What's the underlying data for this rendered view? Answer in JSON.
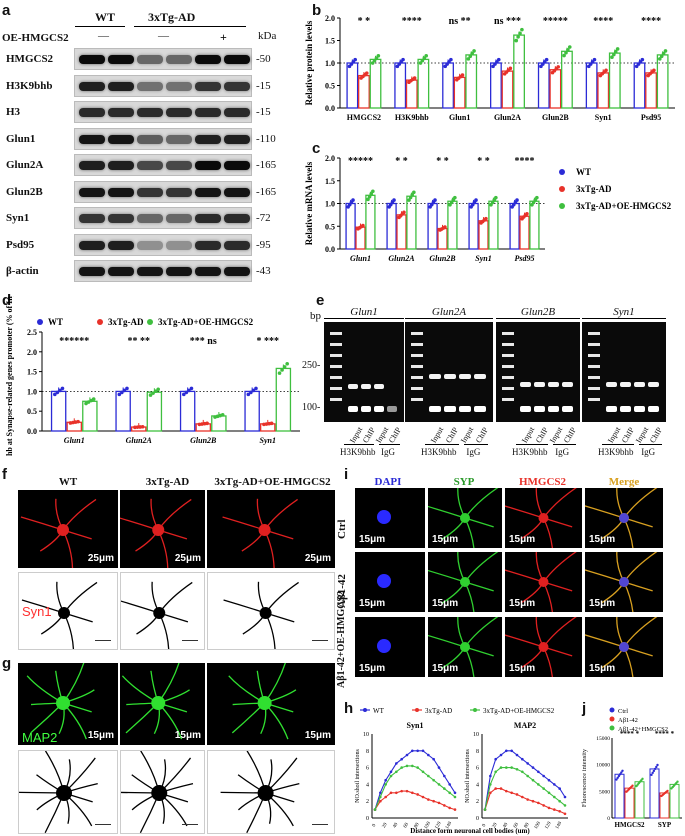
{
  "panels": {
    "a": {
      "letter": "a",
      "groups": [
        "WT",
        "3xTg-AD"
      ],
      "oe_label": "OE-HMGCS2",
      "oe_marks": [
        "—",
        "—",
        "+"
      ],
      "kda_header": "kDa",
      "blots": [
        {
          "name": "HMGCS2",
          "kda": "-50"
        },
        {
          "name": "H3K9bhb",
          "kda": "-15"
        },
        {
          "name": "H3",
          "kda": "-15"
        },
        {
          "name": "Glun1",
          "kda": "-110"
        },
        {
          "name": "Glun2A",
          "kda": "-165"
        },
        {
          "name": "Glun2B",
          "kda": "-165"
        },
        {
          "name": "Syn1",
          "kda": "-72"
        },
        {
          "name": "Psd95",
          "kda": "-95"
        },
        {
          "name": "β-actin",
          "kda": "-43"
        }
      ]
    },
    "b": {
      "letter": "b"
    },
    "c": {
      "letter": "c"
    },
    "d": {
      "letter": "d"
    },
    "e": {
      "letter": "e",
      "bp": "bp",
      "marker_250": "250-",
      "marker_100": "100-",
      "genes": [
        "Glun1",
        "Glun2A",
        "Glun2B",
        "Syn1"
      ],
      "lanes": [
        "Input",
        "ChIP",
        "Input",
        "ChIP"
      ],
      "group_h3": "H3K9bhb",
      "group_igg": "IgG"
    },
    "f": {
      "letter": "f",
      "cols": [
        "WT",
        "3xTg-AD",
        "3xTg-AD+OE-HMGCS2"
      ],
      "stain": "Syn1",
      "scale": "25μm"
    },
    "g": {
      "letter": "g",
      "stain": "MAP2",
      "scale": "15μm"
    },
    "h": {
      "letter": "h",
      "legend": [
        "WT",
        "3xTg-AD",
        "3xTg-AD+OE-HMGCS2"
      ],
      "xlabel": "Distance form neuronal cell bodies (um)",
      "ylabel": "NO.shoil intersections",
      "titles": [
        "Syn1",
        "MAP2"
      ]
    },
    "i": {
      "letter": "i",
      "cols": [
        "DAPI",
        "SYP",
        "HMGCS2",
        "Merge"
      ],
      "rows": [
        "Ctrl",
        "Aβ1-42",
        "Aβ1-42+OE-HMGCS2"
      ],
      "scale": "15μm"
    },
    "j": {
      "letter": "j",
      "legend": [
        "Ctrl",
        "Aβ1-42",
        "Aβ1-42+HMGCS2"
      ],
      "ylabel": "Fluorescence intensity",
      "categories": [
        "HMGCS2",
        "SYP"
      ]
    }
  },
  "colors": {
    "wt": "#2b2bd6",
    "ad": "#e8322a",
    "oe": "#3fbf3f"
  },
  "chart_data": [
    {
      "panel": "b",
      "type": "bar",
      "categories": [
        "HMGCS2",
        "H3K9bhb",
        "Glun1",
        "Glun2A",
        "Glun2B",
        "Syn1",
        "Psd95"
      ],
      "series": [
        {
          "name": "WT",
          "values": [
            1.0,
            1.0,
            1.0,
            1.0,
            1.0,
            1.0,
            1.0
          ]
        },
        {
          "name": "3xTg-AD",
          "values": [
            0.72,
            0.62,
            0.68,
            0.82,
            0.85,
            0.78,
            0.78
          ]
        },
        {
          "name": "3xTg-AD+OE-HMGCS2",
          "values": [
            1.08,
            1.08,
            1.18,
            1.62,
            1.26,
            1.22,
            1.18
          ]
        }
      ],
      "significance": [
        "*  *",
        "****",
        "ns **",
        "ns ***",
        "*****",
        "****",
        "****"
      ],
      "ylabel": "Relative protein levels",
      "yticks": [
        "0.0",
        "0.5",
        "1.0",
        "1.5",
        "2.0"
      ],
      "ylim": [
        0,
        2.0
      ]
    },
    {
      "panel": "c",
      "type": "bar",
      "categories": [
        "Glun1",
        "Glun2A",
        "Glun2B",
        "Syn1",
        "Psd95"
      ],
      "series": [
        {
          "name": "WT",
          "values": [
            1.0,
            1.0,
            1.0,
            1.0,
            1.0
          ]
        },
        {
          "name": "3xTg-AD",
          "values": [
            0.48,
            0.75,
            0.45,
            0.62,
            0.72
          ]
        },
        {
          "name": "3xTg-AD+OE-HMGCS2",
          "values": [
            1.18,
            1.16,
            1.05,
            1.05,
            1.05
          ]
        }
      ],
      "significance": [
        "*****",
        "*  *",
        "*  *",
        "*  *",
        "****"
      ],
      "ylabel": "Relative mRNA levels",
      "yticks": [
        "0.0",
        "0.5",
        "1.0",
        "1.5",
        "2.0"
      ],
      "ylim": [
        0,
        2.0
      ],
      "legend": [
        "WT",
        "3xTg-AD",
        "3xTg-AD+OE-HMGCS2"
      ]
    },
    {
      "panel": "d",
      "type": "bar",
      "categories": [
        "Glun1",
        "Glun2A",
        "Glun2B",
        "Syn1"
      ],
      "series": [
        {
          "name": "WT",
          "values": [
            1.0,
            1.0,
            1.0,
            1.0
          ]
        },
        {
          "name": "3xTg-AD",
          "values": [
            0.22,
            0.1,
            0.18,
            0.18
          ]
        },
        {
          "name": "3xTg-AD+OE-HMGCS2",
          "values": [
            0.75,
            0.98,
            0.38,
            1.58
          ]
        }
      ],
      "significance": [
        "******",
        "** **",
        "*** ns",
        "* ***"
      ],
      "ylabel": "H3K9bhb at Synapse-related genes promoter (% of Input)",
      "yticks": [
        "0.0",
        "0.5",
        "1.0",
        "1.5",
        "2.0",
        "2.5"
      ],
      "ylim": [
        0,
        2.5
      ],
      "legend": [
        "WT",
        "3xTg-AD",
        "3xTg-AD+OE-HMGCS2"
      ]
    },
    {
      "panel": "h",
      "type": "line",
      "x": [
        0,
        10,
        20,
        30,
        40,
        50,
        60,
        70,
        80,
        90,
        100,
        110,
        120,
        130,
        140,
        150
      ],
      "series": [
        {
          "name": "WT",
          "chart": "Syn1",
          "values": [
            1,
            3,
            4.5,
            5.5,
            6.5,
            7,
            7.5,
            8,
            8,
            8,
            7.5,
            7,
            6,
            5,
            4,
            3
          ]
        },
        {
          "name": "3xTg-AD",
          "chart": "Syn1",
          "values": [
            1,
            2,
            2.5,
            3,
            3,
            3.2,
            3.2,
            3,
            2.8,
            2.5,
            2.2,
            2,
            1.8,
            1.5,
            1.2,
            1
          ]
        },
        {
          "name": "3xTg-AD+OE-HMGCS2",
          "chart": "Syn1",
          "values": [
            1,
            2.5,
            4,
            5,
            5.5,
            6,
            6.2,
            6.2,
            6,
            5.5,
            5,
            4.5,
            4,
            3.5,
            3,
            2.5
          ]
        },
        {
          "name": "WT",
          "chart": "MAP2",
          "values": [
            1,
            5,
            7,
            7.5,
            8,
            8,
            7.5,
            7,
            6.5,
            6,
            5.5,
            5,
            4.5,
            4,
            3.5,
            2.5
          ]
        },
        {
          "name": "3xTg-AD",
          "chart": "MAP2",
          "values": [
            1,
            3,
            3.5,
            3.5,
            3.2,
            3,
            2.8,
            2.5,
            2.2,
            2,
            1.8,
            1.5,
            1.2,
            1,
            0.8,
            0.5
          ]
        },
        {
          "name": "3xTg-AD+OE-HMGCS2",
          "chart": "MAP2",
          "values": [
            1,
            4,
            5.5,
            6,
            6,
            6,
            5.8,
            5.5,
            5,
            4.5,
            4,
            3.5,
            3,
            2.5,
            2,
            1.5
          ]
        }
      ],
      "yticks": [
        "0",
        "2",
        "4",
        "6",
        "8",
        "10"
      ],
      "ylim": [
        0,
        10
      ]
    },
    {
      "panel": "j",
      "type": "bar",
      "categories": [
        "HMGCS2",
        "SYP"
      ],
      "series": [
        {
          "name": "Ctrl",
          "values": [
            8200,
            9200
          ]
        },
        {
          "name": "Aβ1-42",
          "values": [
            5600,
            4700
          ]
        },
        {
          "name": "Aβ1-42+HMGCS2",
          "values": [
            6800,
            6300
          ]
        }
      ],
      "significance": [
        "**** *",
        "**** *"
      ],
      "yticks": [
        "0",
        "5000",
        "10000",
        "15000"
      ],
      "ylim": [
        0,
        15000
      ]
    }
  ]
}
